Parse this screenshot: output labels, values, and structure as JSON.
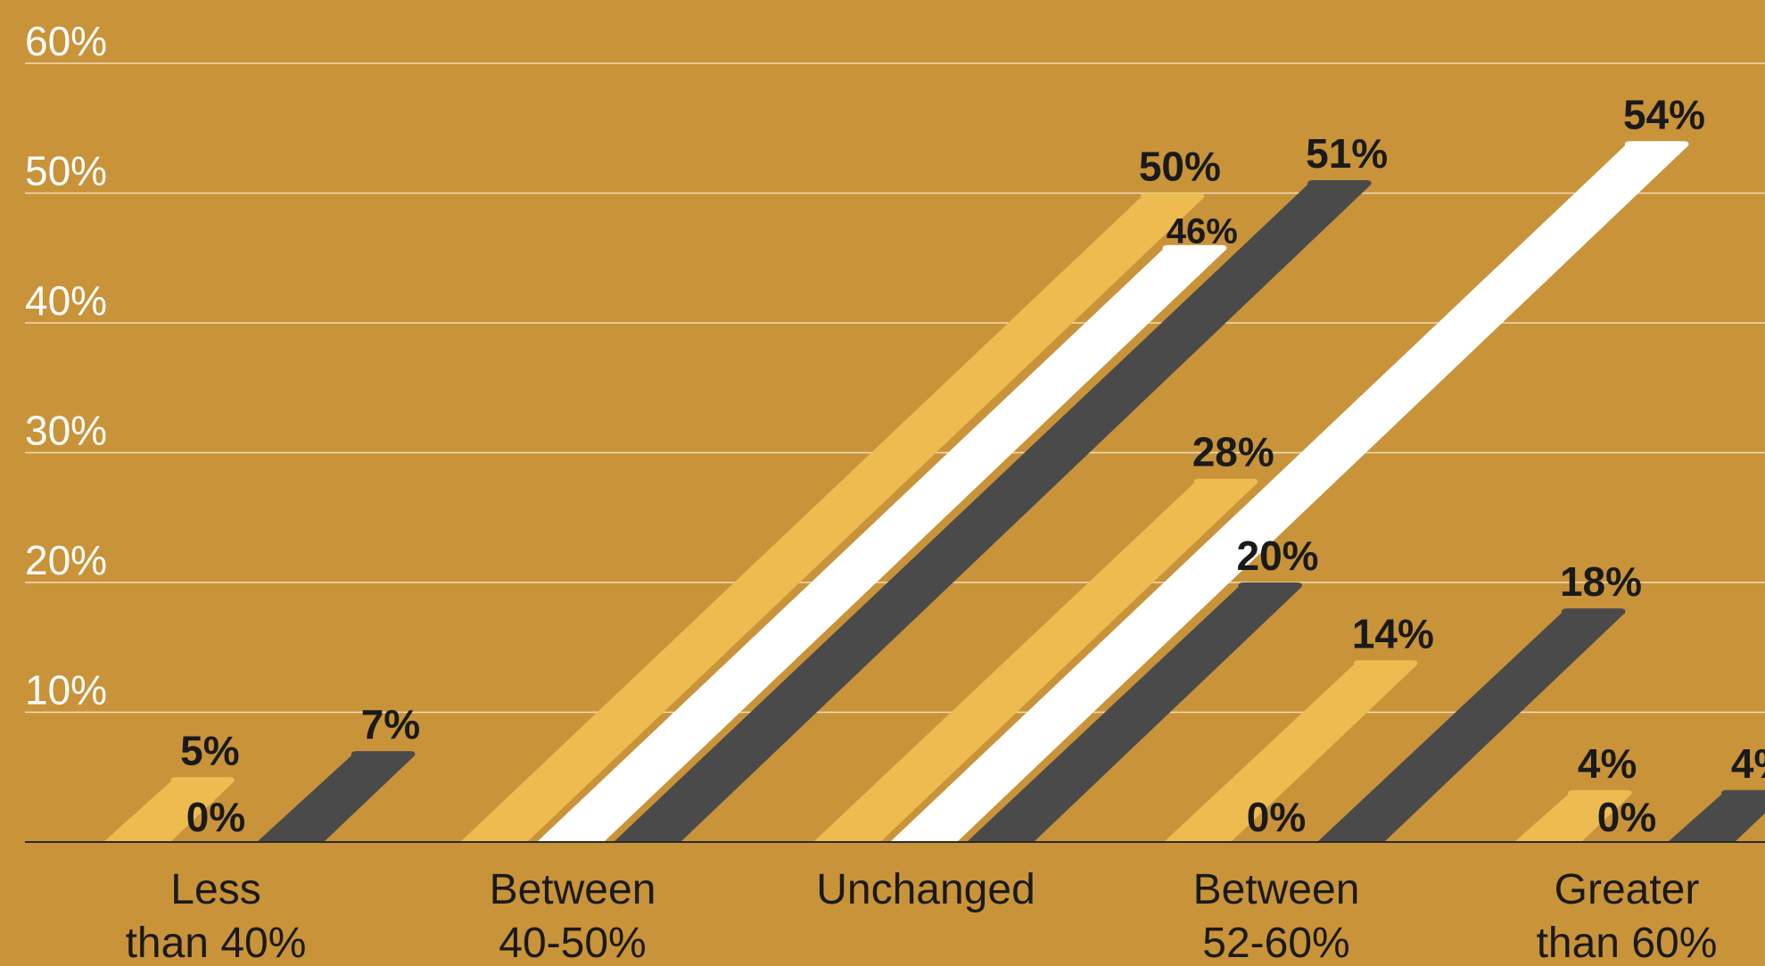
{
  "chart_data": {
    "type": "bar",
    "title": "",
    "xlabel": "",
    "ylabel": "",
    "ylim": [
      0,
      60
    ],
    "y_ticks": [
      10,
      20,
      30,
      40,
      50,
      60
    ],
    "y_tick_labels": [
      "10%",
      "20%",
      "30%",
      "40%",
      "50%",
      "60%"
    ],
    "grid": true,
    "legend": "none",
    "categories": [
      [
        "Less",
        "than 40%"
      ],
      [
        "Between",
        "40-50%"
      ],
      [
        "Unchanged"
      ],
      [
        "Between",
        "52-60%"
      ],
      [
        "Greater",
        "than 60%"
      ]
    ],
    "series": [
      {
        "color": "#EEBB50",
        "values": [
          5,
          50,
          28,
          14,
          4
        ],
        "labels": [
          "5%",
          "50%",
          "28%",
          "14%",
          "4%"
        ]
      },
      {
        "color": "#FFFFFF",
        "values": [
          0,
          46,
          54,
          0,
          0
        ],
        "labels": [
          "0%",
          "46%",
          "54%",
          "0%",
          "0%"
        ]
      },
      {
        "color": "#4A4A4A",
        "values": [
          7,
          51,
          20,
          18,
          4
        ],
        "labels": [
          "7%",
          "51%",
          "20%",
          "18%",
          "4%"
        ]
      }
    ],
    "background": "#C9933A",
    "gridline_color": "#F1DDB6"
  }
}
